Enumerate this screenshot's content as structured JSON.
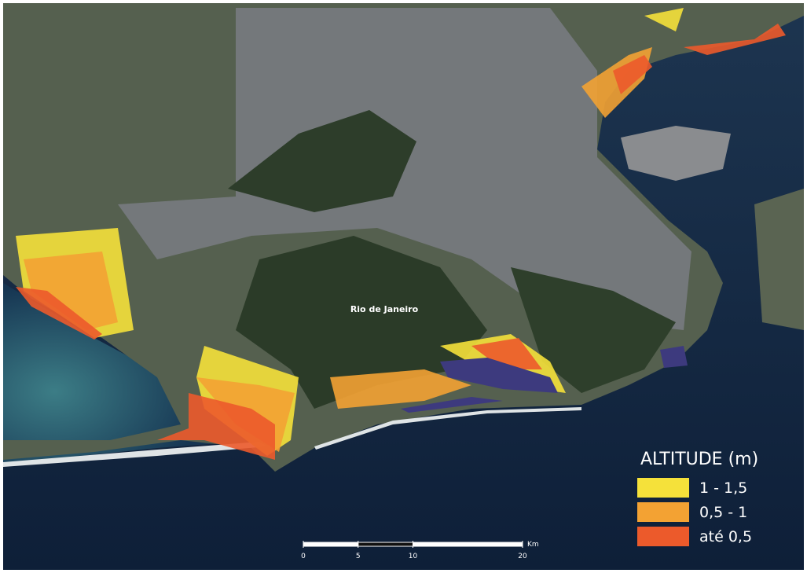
{
  "map": {
    "place_label": "Rio de Janeiro",
    "legend": {
      "title": "ALTITUDE (m)",
      "items": [
        {
          "label": "1 - 1,5",
          "color": "#f5e13a"
        },
        {
          "label": "0,5 - 1",
          "color": "#f3a233"
        },
        {
          "label": "até 0,5",
          "color": "#ec5a2b"
        }
      ]
    },
    "scale_bar": {
      "ticks": [
        0,
        5,
        10,
        20
      ],
      "unit": "Km"
    }
  }
}
